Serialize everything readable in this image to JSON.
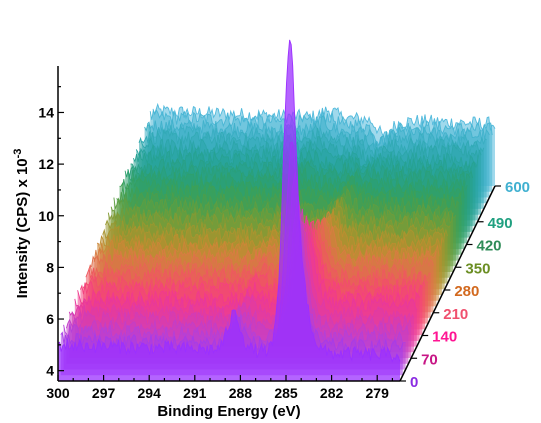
{
  "chart_data": {
    "type": "area",
    "title": "",
    "xlabel": "Binding Energy (eV)",
    "ylabel_prefix": "Intensity (CPS) x 10",
    "ylabel_exponent": "-3",
    "x_ticks": [
      "300",
      "297",
      "294",
      "291",
      "288",
      "285",
      "282",
      "279"
    ],
    "x_tick_values": [
      300,
      297,
      294,
      291,
      288,
      285,
      282,
      279
    ],
    "xlim": [
      300,
      277.5
    ],
    "y_ticks": [
      "4",
      "6",
      "8",
      "10",
      "12",
      "14"
    ],
    "y_tick_values": [
      4,
      6,
      8,
      10,
      12,
      14
    ],
    "ylim": [
      3.6,
      15.8
    ],
    "x_reversed": true,
    "depth_axis": {
      "ticks": [
        "0",
        "70",
        "140",
        "210",
        "280",
        "350",
        "420",
        "490",
        "600"
      ],
      "tick_colors": [
        "#8a2be2",
        "#c71585",
        "#ff1493",
        "#f0506e",
        "#d2691e",
        "#6b8e23",
        "#2e8b57",
        "#20a080",
        "#40b0d0"
      ]
    },
    "series_count": 35,
    "series_depths": [
      0,
      17.6,
      35.3,
      52.9,
      70.6,
      88.2,
      105.9,
      123.5,
      141.2,
      158.8,
      176.5,
      194.1,
      211.8,
      229.4,
      247.1,
      264.7,
      282.4,
      300,
      317.6,
      335.3,
      352.9,
      370.6,
      388.2,
      405.9,
      423.5,
      441.2,
      458.8,
      476.5,
      494.1,
      511.8,
      529.4,
      547.1,
      564.7,
      582.4,
      600
    ],
    "series_peak_285": [
      14.2,
      11.5,
      10.2,
      9.3,
      8.7,
      8.3,
      8.0,
      7.7,
      7.5,
      7.3,
      7.1,
      7.0,
      6.9,
      6.8,
      6.7,
      6.6,
      6.5,
      6.45,
      6.4,
      6.35,
      6.3,
      6.25,
      6.2,
      6.15,
      6.1,
      6.05,
      6.0,
      5.95,
      5.9,
      5.85,
      5.8,
      5.75,
      5.7,
      5.65,
      5.6
    ],
    "series_baseline_300": [
      5.0,
      5.0,
      5.1,
      5.1,
      5.2,
      5.2,
      5.3,
      5.3,
      5.4,
      5.4,
      5.5,
      5.5,
      5.6,
      5.6,
      5.7,
      5.7,
      5.8,
      5.8,
      5.9,
      5.9,
      6.0,
      6.0,
      6.1,
      6.1,
      6.2,
      6.2,
      6.2,
      6.3,
      6.3,
      6.3,
      6.4,
      6.4,
      6.4,
      6.5,
      6.5
    ],
    "series_baseline_279": [
      4.6,
      4.7,
      4.8,
      4.9,
      5.0,
      5.1,
      5.2,
      5.2,
      5.3,
      5.3,
      5.4,
      5.4,
      5.5,
      5.5,
      5.5,
      5.6,
      5.6,
      5.6,
      5.7,
      5.7,
      5.7,
      5.8,
      5.8,
      5.8,
      5.8,
      5.9,
      5.9,
      5.9,
      5.9,
      6.0,
      6.0,
      6.0,
      6.0,
      6.0,
      6.0
    ],
    "shoulder_288_5_height": [
      1.4,
      0.9,
      0.7,
      0.6,
      0.5,
      0.5,
      0.4,
      0.4,
      0.4,
      0.3,
      0.3,
      0.3,
      0.3,
      0.3,
      0.3,
      0.3,
      0.3,
      0.3,
      0.3,
      0.3,
      0.3,
      0.3,
      0.3,
      0.3,
      0.3,
      0.3,
      0.3,
      0.3,
      0.3,
      0.3,
      0.3,
      0.3,
      0.3,
      0.3,
      0.3
    ],
    "series_colors": [
      "#9b30ff",
      "#a63ce8",
      "#b440d8",
      "#c23ec8",
      "#d03cb8",
      "#de3aa8",
      "#e8389c",
      "#f03a8e",
      "#f4427e",
      "#f24c6e",
      "#ee5860",
      "#e86456",
      "#e0704c",
      "#d87c42",
      "#cc8638",
      "#bc8e30",
      "#aa9430",
      "#989830",
      "#849a34",
      "#709c3a",
      "#5e9e42",
      "#4c9e4c",
      "#3ea056",
      "#34a062",
      "#2ea06e",
      "#2aa07a",
      "#28a086",
      "#26a292",
      "#28a49e",
      "#2ca6aa",
      "#32aab6",
      "#3aaec2",
      "#42b2cc",
      "#4ab6d4",
      "#52badc"
    ],
    "legend": "none",
    "grid": false
  }
}
